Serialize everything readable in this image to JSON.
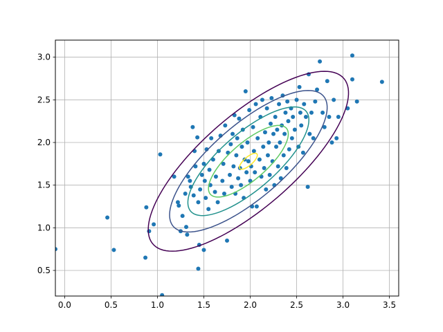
{
  "chart_data": {
    "type": "scatter",
    "title": "",
    "xlabel": "",
    "ylabel": "",
    "xlim": [
      -0.1,
      3.6
    ],
    "ylim": [
      0.2,
      3.2
    ],
    "grid": true,
    "x_ticks": [
      0.0,
      0.5,
      1.0,
      1.5,
      2.0,
      2.5,
      3.0,
      3.5
    ],
    "x_tick_labels": [
      "0.0",
      "0.5",
      "1.0",
      "1.5",
      "2.0",
      "2.5",
      "3.0",
      "3.5"
    ],
    "y_ticks": [
      0.5,
      1.0,
      1.5,
      2.0,
      2.5,
      3.0
    ],
    "y_tick_labels": [
      "0.5",
      "1.0",
      "1.5",
      "2.0",
      "2.5",
      "3.0"
    ],
    "colors": {
      "points": "#1f77b4",
      "grid": "#b0b0b0",
      "contour_levels": [
        "#440154",
        "#3b528b",
        "#21918c",
        "#5ec962",
        "#fde725"
      ]
    },
    "contour": {
      "center": [
        1.98,
        1.78
      ],
      "sigma_x": 0.43,
      "sigma_y": 0.42,
      "rho": 0.76,
      "levels_mahalanobis_sq": [
        6.3,
        3.9,
        2.3,
        1.0,
        0.05
      ]
    },
    "points": [
      [
        -0.1,
        0.75
      ],
      [
        0.46,
        1.12
      ],
      [
        0.53,
        0.74
      ],
      [
        0.87,
        0.65
      ],
      [
        0.88,
        1.24
      ],
      [
        0.91,
        0.96
      ],
      [
        0.96,
        1.04
      ],
      [
        1.03,
        1.86
      ],
      [
        1.05,
        0.21
      ],
      [
        1.18,
        1.6
      ],
      [
        1.22,
        1.3
      ],
      [
        1.23,
        1.26
      ],
      [
        1.25,
        0.96
      ],
      [
        1.27,
        1.14
      ],
      [
        1.3,
        1.4
      ],
      [
        1.31,
        1.01
      ],
      [
        1.32,
        0.92
      ],
      [
        1.33,
        1.6
      ],
      [
        1.35,
        1.55
      ],
      [
        1.36,
        1.48
      ],
      [
        1.38,
        2.18
      ],
      [
        1.39,
        1.38
      ],
      [
        1.4,
        1.9
      ],
      [
        1.41,
        1.72
      ],
      [
        1.43,
        2.06
      ],
      [
        1.44,
        0.52
      ],
      [
        1.44,
        1.3
      ],
      [
        1.45,
        0.8
      ],
      [
        1.46,
        1.45
      ],
      [
        1.48,
        1.62
      ],
      [
        1.5,
        1.75
      ],
      [
        1.5,
        0.74
      ],
      [
        1.51,
        1.55
      ],
      [
        1.52,
        1.35
      ],
      [
        1.53,
        1.92
      ],
      [
        1.55,
        1.22
      ],
      [
        1.56,
        1.68
      ],
      [
        1.57,
        1.5
      ],
      [
        1.58,
        2.05
      ],
      [
        1.6,
        1.8
      ],
      [
        1.62,
        1.42
      ],
      [
        1.63,
        1.6
      ],
      [
        1.65,
        1.3
      ],
      [
        1.66,
        1.9
      ],
      [
        1.68,
        2.08
      ],
      [
        1.7,
        1.55
      ],
      [
        1.71,
        1.75
      ],
      [
        1.72,
        1.4
      ],
      [
        1.73,
        2.2
      ],
      [
        1.75,
        0.85
      ],
      [
        1.76,
        1.88
      ],
      [
        1.78,
        1.62
      ],
      [
        1.79,
        1.98
      ],
      [
        1.8,
        1.48
      ],
      [
        1.81,
        2.1
      ],
      [
        1.82,
        1.72
      ],
      [
        1.83,
        2.32
      ],
      [
        1.84,
        1.4
      ],
      [
        1.85,
        1.85
      ],
      [
        1.86,
        2.05
      ],
      [
        1.87,
        1.58
      ],
      [
        1.88,
        2.28
      ],
      [
        1.89,
        1.7
      ],
      [
        1.9,
        1.5
      ],
      [
        1.91,
        1.95
      ],
      [
        1.92,
        2.15
      ],
      [
        1.93,
        1.35
      ],
      [
        1.94,
        1.8
      ],
      [
        1.95,
        2.6
      ],
      [
        1.96,
        1.65
      ],
      [
        1.97,
        2.0
      ],
      [
        1.98,
        1.78
      ],
      [
        1.99,
        2.38
      ],
      [
        2.0,
        1.55
      ],
      [
        2.01,
        1.72
      ],
      [
        2.02,
        1.25
      ],
      [
        2.03,
        2.18
      ],
      [
        2.04,
        1.9
      ],
      [
        2.05,
        1.65
      ],
      [
        2.06,
        2.45
      ],
      [
        2.07,
        1.25
      ],
      [
        2.08,
        2.05
      ],
      [
        2.1,
        1.8
      ],
      [
        2.11,
        2.3
      ],
      [
        2.12,
        1.6
      ],
      [
        2.13,
        2.5
      ],
      [
        2.14,
        1.95
      ],
      [
        2.15,
        1.7
      ],
      [
        2.16,
        2.12
      ],
      [
        2.17,
        1.45
      ],
      [
        2.18,
        2.4
      ],
      [
        2.19,
        1.85
      ],
      [
        2.2,
        2.0
      ],
      [
        2.21,
        1.62
      ],
      [
        2.22,
        2.22
      ],
      [
        2.23,
        2.52
      ],
      [
        2.24,
        1.78
      ],
      [
        2.25,
        2.1
      ],
      [
        2.26,
        1.5
      ],
      [
        2.27,
        2.3
      ],
      [
        2.28,
        1.95
      ],
      [
        2.29,
        2.15
      ],
      [
        2.3,
        1.72
      ],
      [
        2.31,
        2.45
      ],
      [
        2.32,
        2.0
      ],
      [
        2.33,
        1.58
      ],
      [
        2.34,
        2.2
      ],
      [
        2.35,
        2.55
      ],
      [
        2.36,
        1.85
      ],
      [
        2.37,
        2.1
      ],
      [
        2.38,
        2.35
      ],
      [
        2.39,
        1.7
      ],
      [
        2.4,
        2.48
      ],
      [
        2.41,
        2.25
      ],
      [
        2.42,
        1.92
      ],
      [
        2.44,
        2.4
      ],
      [
        2.45,
        2.05
      ],
      [
        2.46,
        2.3
      ],
      [
        2.48,
        2.15
      ],
      [
        2.5,
        2.5
      ],
      [
        2.52,
        1.95
      ],
      [
        2.53,
        2.65
      ],
      [
        2.54,
        2.35
      ],
      [
        2.55,
        2.2
      ],
      [
        2.57,
        1.88
      ],
      [
        2.58,
        2.45
      ],
      [
        2.6,
        2.3
      ],
      [
        2.62,
        1.48
      ],
      [
        2.63,
        2.8
      ],
      [
        2.64,
        2.1
      ],
      [
        2.66,
        2.35
      ],
      [
        2.68,
        2.05
      ],
      [
        2.7,
        2.48
      ],
      [
        2.72,
        2.62
      ],
      [
        2.75,
        2.95
      ],
      [
        2.78,
        2.35
      ],
      [
        2.8,
        2.18
      ],
      [
        2.83,
        2.72
      ],
      [
        2.85,
        2.3
      ],
      [
        2.88,
        2.0
      ],
      [
        2.9,
        2.5
      ],
      [
        2.93,
        2.05
      ],
      [
        2.95,
        2.3
      ],
      [
        3.05,
        2.4
      ],
      [
        3.1,
        3.02
      ],
      [
        3.1,
        2.74
      ],
      [
        3.15,
        2.48
      ],
      [
        3.42,
        2.71
      ]
    ]
  }
}
